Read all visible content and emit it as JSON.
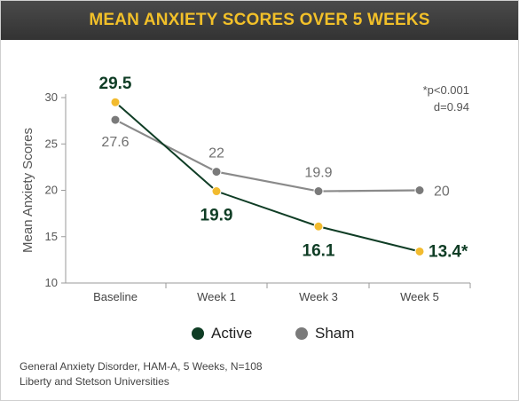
{
  "title": "MEAN ANXIETY SCORES OVER 5 WEEKS",
  "chart_data": {
    "type": "line",
    "ylabel": "Mean Anxiety Scores",
    "xlabel": "",
    "categories": [
      "Baseline",
      "Week 1",
      "Week 3",
      "Week 5"
    ],
    "ylim": [
      10,
      30
    ],
    "yticks": [
      "10",
      "15",
      "20",
      "25",
      "30"
    ],
    "grid": false,
    "series": [
      {
        "name": "Active",
        "values": [
          29.5,
          19.9,
          16.1,
          13.4
        ],
        "labels": [
          "29.5",
          "19.9",
          "16.1",
          "13.4*"
        ],
        "line_color": "#0f3d25",
        "marker_color": "#f2bb2f"
      },
      {
        "name": "Sham",
        "values": [
          27.6,
          22,
          19.9,
          20
        ],
        "labels": [
          "27.6",
          "22",
          "19.9",
          "20"
        ],
        "line_color": "#8a8a8a",
        "marker_color": "#7a7a7a"
      }
    ],
    "annotations": [
      "*p<0.001",
      "d=0.94"
    ],
    "legend": [
      {
        "label": "Active",
        "color": "#0f3d25"
      },
      {
        "label": "Sham",
        "color": "#7a7a7a"
      }
    ]
  },
  "footnote": {
    "line1": "General Anxiety Disorder, HAM-A, 5 Weeks, N=108",
    "line2": "Liberty and Stetson Universities"
  },
  "colors": {
    "title_bg": "#3d3d3d",
    "title_text": "#f2c029",
    "axis": "#9a9a9a"
  }
}
